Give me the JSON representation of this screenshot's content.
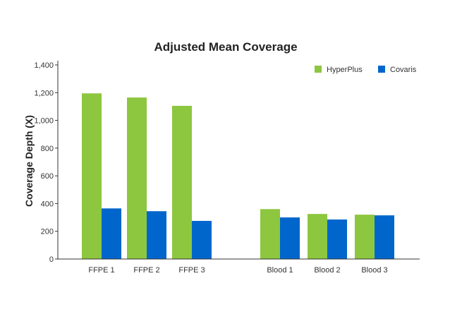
{
  "chart_data": {
    "type": "bar",
    "title": "Adjusted Mean Coverage",
    "xlabel": "",
    "ylabel": "Coverage Depth (X)",
    "ylim": [
      0,
      1400
    ],
    "yticks": [
      0,
      200,
      400,
      600,
      800,
      1000,
      1200,
      1400
    ],
    "ytick_labels": [
      "0",
      "200",
      "400",
      "600",
      "800",
      "1,000",
      "1,200",
      "1,400"
    ],
    "categories": [
      "FFPE 1",
      "FFPE 2",
      "FFPE 3",
      "Blood 1",
      "Blood 2",
      "Blood 3"
    ],
    "series": [
      {
        "name": "HyperPlus",
        "color": "#8dc63f",
        "values": [
          1195,
          1165,
          1105,
          360,
          325,
          320
        ]
      },
      {
        "name": "Covaris",
        "color": "#0066cc",
        "values": [
          365,
          345,
          275,
          300,
          285,
          315
        ]
      }
    ],
    "legend_position": "top-right",
    "grid": false
  }
}
